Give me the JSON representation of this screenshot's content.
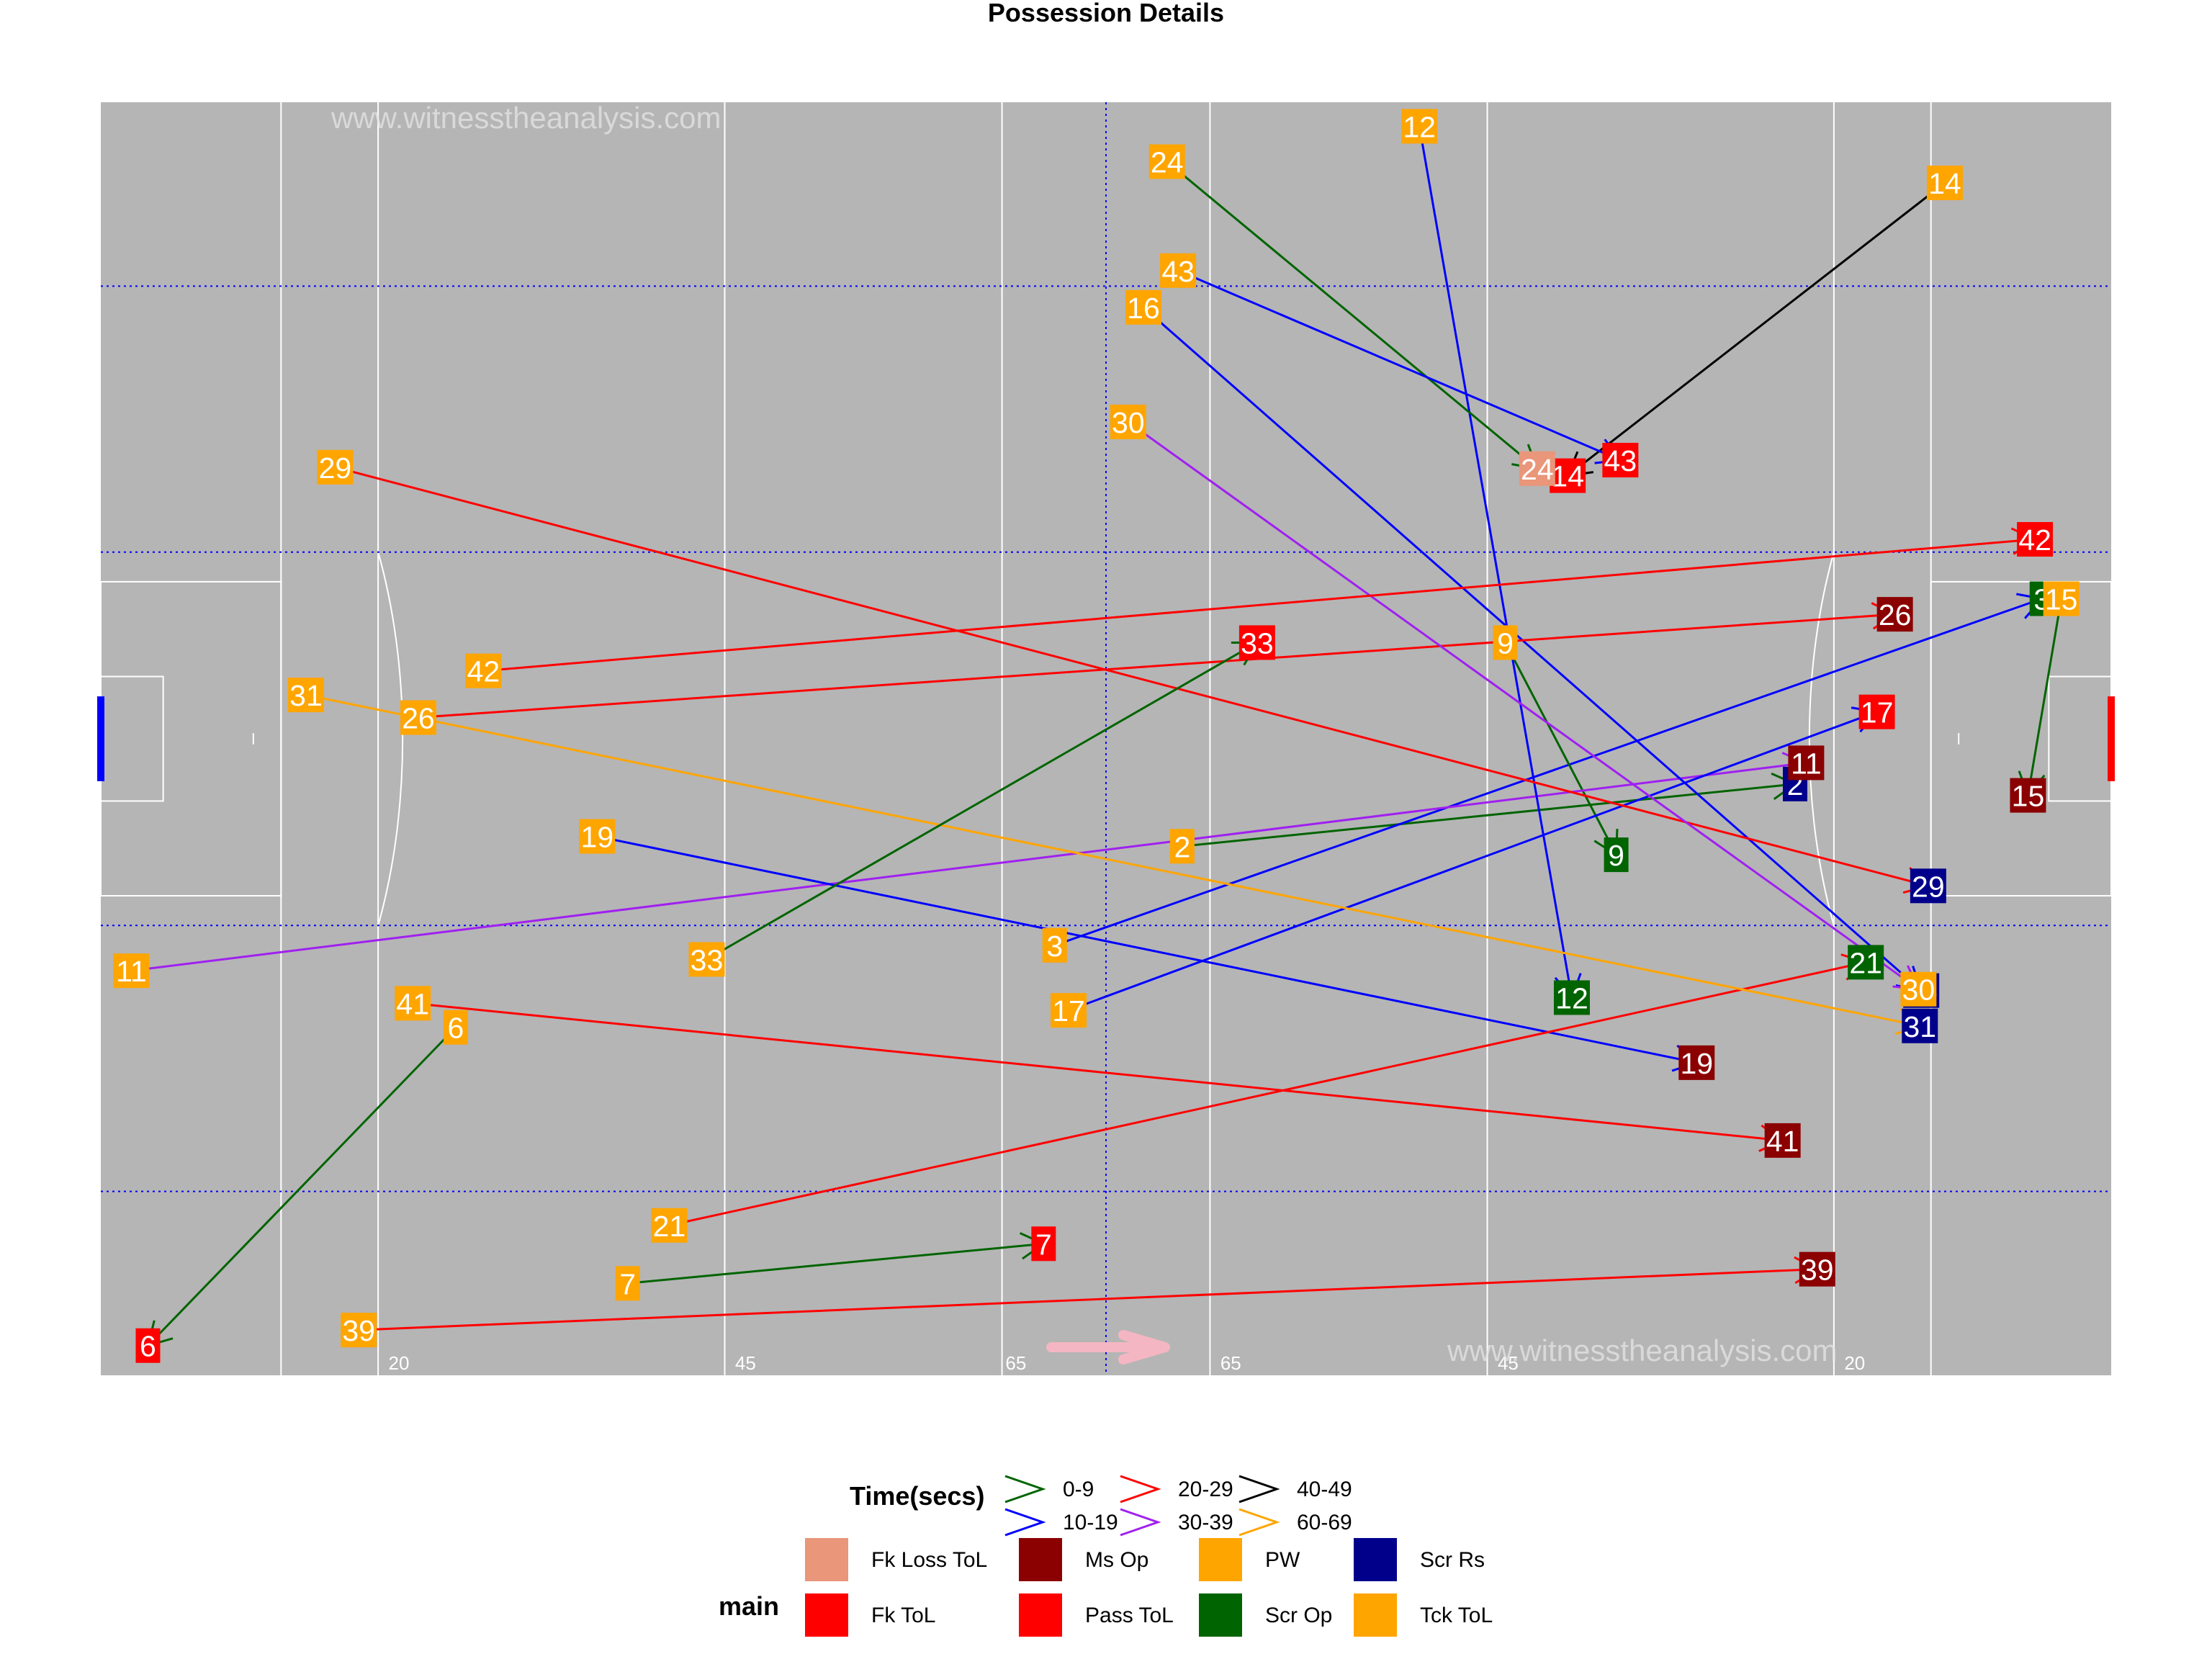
{
  "title": "Possession Details",
  "watermarks": [
    "www.witnesstheanalysis.com",
    "www.witnesstheanalysis.com"
  ],
  "pitch": {
    "background": "#b5b5b5",
    "tick_labels": [
      "20",
      "45",
      "65",
      "65",
      "45",
      "20"
    ]
  },
  "legend": {
    "time_title": "Time(secs)",
    "time_items": [
      {
        "label": "0-9",
        "color": "#006400"
      },
      {
        "label": "10-19",
        "color": "#0000ff"
      },
      {
        "label": "20-29",
        "color": "#ff0000"
      },
      {
        "label": "30-39",
        "color": "#a020f0"
      },
      {
        "label": "40-49",
        "color": "#000000"
      },
      {
        "label": "60-69",
        "color": "#ffa500"
      }
    ],
    "main_title": "main",
    "main_items": [
      {
        "label": "Fk Loss ToL",
        "color": "#e9967a"
      },
      {
        "label": "Fk ToL",
        "color": "#ff0000"
      },
      {
        "label": "Ms Op",
        "color": "#8b0000"
      },
      {
        "label": "Pass ToL",
        "color": "#ff0000"
      },
      {
        "label": "PW",
        "color": "#ffa500"
      },
      {
        "label": "Scr Op",
        "color": "#006400"
      },
      {
        "label": "Scr Rs",
        "color": "#00008b"
      },
      {
        "label": "Tck ToL",
        "color": "#ffa500"
      }
    ]
  },
  "chart_data": {
    "type": "scatter",
    "title": "Possession Details",
    "xlim": [
      0,
      145
    ],
    "ylim": [
      0,
      90
    ],
    "time_colors": {
      "0-9": "#006400",
      "10-19": "#0000ff",
      "20-29": "#ff0000",
      "30-39": "#a020f0",
      "40-49": "#000000",
      "60-69": "#ffa500"
    },
    "main_colors": {
      "Fk Loss ToL": "#e9967a",
      "Fk ToL": "#ff0000",
      "Ms Op": "#8b0000",
      "Pass ToL": "#ff0000",
      "PW": "#ffa500",
      "Scr Op": "#006400",
      "Scr Rs": "#00008b",
      "Tck ToL": "#ffa500"
    },
    "possessions": [
      {
        "id": "2",
        "time": "0-9",
        "start": {
          "x": 78,
          "y": 37.4,
          "main": "Tck ToL"
        },
        "end": {
          "x": 122.2,
          "y": 41.8,
          "main": "Scr Rs"
        }
      },
      {
        "id": "3",
        "time": "10-19",
        "start": {
          "x": 68.8,
          "y": 30.4,
          "main": "Tck ToL"
        },
        "end": {
          "x": 140,
          "y": 54.9,
          "main": "Scr Op"
        }
      },
      {
        "id": "6",
        "time": "0-9",
        "start": {
          "x": 25.6,
          "y": 24.6,
          "main": "Tck ToL"
        },
        "end": {
          "x": 3.4,
          "y": 2.1,
          "main": "Fk ToL"
        }
      },
      {
        "id": "7",
        "time": "0-9",
        "start": {
          "x": 38,
          "y": 6.5,
          "main": "Tck ToL"
        },
        "end": {
          "x": 68,
          "y": 9.3,
          "main": "Pass ToL"
        }
      },
      {
        "id": "9",
        "time": "0-9",
        "start": {
          "x": 101.3,
          "y": 51.8,
          "main": "Tck ToL"
        },
        "end": {
          "x": 109.3,
          "y": 36.8,
          "main": "Scr Op"
        }
      },
      {
        "id": "11",
        "time": "30-39",
        "start": {
          "x": 2.2,
          "y": 28.6,
          "main": "Tck ToL"
        },
        "end": {
          "x": 123,
          "y": 43.3,
          "main": "Ms Op"
        }
      },
      {
        "id": "12",
        "time": "10-19",
        "start": {
          "x": 95.1,
          "y": 88.3,
          "main": "Tck ToL"
        },
        "end": {
          "x": 106.1,
          "y": 26.7,
          "main": "Scr Op"
        }
      },
      {
        "id": "14",
        "time": "40-49",
        "start": {
          "x": 133,
          "y": 84.3,
          "main": "Tck ToL"
        },
        "end": {
          "x": 105.8,
          "y": 63.6,
          "main": "Pass ToL"
        }
      },
      {
        "id": "15",
        "time": "0-9",
        "start": {
          "x": 141.4,
          "y": 54.9,
          "main": "Tck ToL"
        },
        "end": {
          "x": 139,
          "y": 41,
          "main": "Ms Op"
        }
      },
      {
        "id": "16",
        "time": "10-19",
        "start": {
          "x": 75.2,
          "y": 75.5,
          "main": "Tck ToL"
        },
        "end": {
          "x": 131.3,
          "y": 27.2,
          "main": "Scr Rs"
        }
      },
      {
        "id": "17",
        "time": "10-19",
        "start": {
          "x": 69.8,
          "y": 25.8,
          "main": "Tck ToL"
        },
        "end": {
          "x": 128.1,
          "y": 46.9,
          "main": "Pass ToL"
        }
      },
      {
        "id": "19",
        "time": "10-19",
        "start": {
          "x": 35.8,
          "y": 38.1,
          "main": "Tck ToL"
        },
        "end": {
          "x": 115.1,
          "y": 22.1,
          "main": "Ms Op"
        }
      },
      {
        "id": "21",
        "time": "20-29",
        "start": {
          "x": 41,
          "y": 10.6,
          "main": "Tck ToL"
        },
        "end": {
          "x": 127.3,
          "y": 29.2,
          "main": "Scr Op"
        }
      },
      {
        "id": "24",
        "time": "0-9",
        "start": {
          "x": 76.9,
          "y": 85.8,
          "main": "Tck ToL"
        },
        "end": {
          "x": 103.6,
          "y": 64.1,
          "main": "Fk Loss ToL"
        }
      },
      {
        "id": "26",
        "time": "20-29",
        "start": {
          "x": 22.9,
          "y": 46.5,
          "main": "Tck ToL"
        },
        "end": {
          "x": 129.4,
          "y": 53.8,
          "main": "Ms Op"
        }
      },
      {
        "id": "29",
        "time": "20-29",
        "start": {
          "x": 16.9,
          "y": 64.2,
          "main": "Tck ToL"
        },
        "end": {
          "x": 131.8,
          "y": 34.6,
          "main": "Scr Rs"
        }
      },
      {
        "id": "30",
        "time": "30-39",
        "start": {
          "x": 74.1,
          "y": 67.4,
          "main": "Tck ToL"
        },
        "end": {
          "x": 131.1,
          "y": 27.3,
          "main": "Tck ToL"
        }
      },
      {
        "id": "31",
        "time": "60-69",
        "start": {
          "x": 14.8,
          "y": 48.1,
          "main": "Tck ToL"
        },
        "end": {
          "x": 131.2,
          "y": 24.7,
          "main": "Scr Rs"
        }
      },
      {
        "id": "33",
        "time": "0-9",
        "start": {
          "x": 43.7,
          "y": 29.4,
          "main": "Tck ToL"
        },
        "end": {
          "x": 83.4,
          "y": 51.8,
          "main": "Pass ToL"
        }
      },
      {
        "id": "39",
        "time": "20-29",
        "start": {
          "x": 18.6,
          "y": 3.2,
          "main": "Tck ToL"
        },
        "end": {
          "x": 123.8,
          "y": 7.5,
          "main": "Ms Op"
        }
      },
      {
        "id": "41",
        "time": "20-29",
        "start": {
          "x": 22.5,
          "y": 26.3,
          "main": "Tck ToL"
        },
        "end": {
          "x": 121.3,
          "y": 16.6,
          "main": "Ms Op"
        }
      },
      {
        "id": "42",
        "time": "20-29",
        "start": {
          "x": 27.6,
          "y": 49.8,
          "main": "Tck ToL"
        },
        "end": {
          "x": 139.5,
          "y": 59.1,
          "main": "Pass ToL"
        }
      },
      {
        "id": "43",
        "time": "10-19",
        "start": {
          "x": 77.7,
          "y": 78.1,
          "main": "Tck ToL"
        },
        "end": {
          "x": 109.6,
          "y": 64.7,
          "main": "Pass ToL"
        }
      }
    ]
  }
}
